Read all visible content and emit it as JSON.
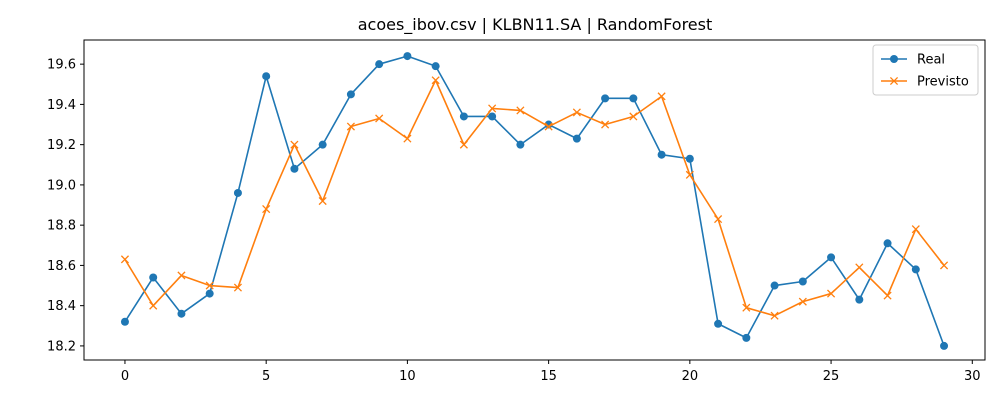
{
  "chart_data": {
    "type": "line",
    "title": "acoes_ibov.csv | KLBN11.SA | RandomForest",
    "xlabel": "",
    "ylabel": "",
    "x": [
      0,
      1,
      2,
      3,
      4,
      5,
      6,
      7,
      8,
      9,
      10,
      11,
      12,
      13,
      14,
      15,
      16,
      17,
      18,
      19,
      20,
      21,
      22,
      23,
      24,
      25,
      26,
      27,
      28,
      29
    ],
    "xlim": [
      -1.45,
      30.45
    ],
    "ylim": [
      18.13,
      19.72
    ],
    "xticks": [
      0,
      5,
      10,
      15,
      20,
      25,
      30
    ],
    "xtick_labels": [
      "0",
      "5",
      "10",
      "15",
      "20",
      "25",
      "30"
    ],
    "yticks": [
      18.2,
      18.4,
      18.6,
      18.8,
      19.0,
      19.2,
      19.4,
      19.6
    ],
    "ytick_labels": [
      "18.2",
      "18.4",
      "18.6",
      "18.8",
      "19.0",
      "19.2",
      "19.4",
      "19.6"
    ],
    "grid": false,
    "legend_position": "top-right",
    "series": [
      {
        "name": "Real",
        "color": "#1f77b4",
        "marker": "circle",
        "values": [
          18.32,
          18.54,
          18.36,
          18.46,
          18.96,
          19.54,
          19.08,
          19.2,
          19.45,
          19.6,
          19.64,
          19.59,
          19.34,
          19.34,
          19.2,
          19.3,
          19.23,
          19.43,
          19.43,
          19.15,
          19.13,
          18.31,
          18.24,
          18.5,
          18.52,
          18.64,
          18.43,
          18.71,
          18.58,
          18.2
        ]
      },
      {
        "name": "Previsto",
        "color": "#ff7f0e",
        "marker": "x",
        "values": [
          18.63,
          18.4,
          18.55,
          18.5,
          18.49,
          18.88,
          19.2,
          18.92,
          19.29,
          19.33,
          19.23,
          19.52,
          19.2,
          19.38,
          19.37,
          19.29,
          19.36,
          19.3,
          19.34,
          19.44,
          19.05,
          18.83,
          18.39,
          18.35,
          18.42,
          18.46,
          18.59,
          18.45,
          18.78,
          18.6
        ]
      }
    ]
  }
}
